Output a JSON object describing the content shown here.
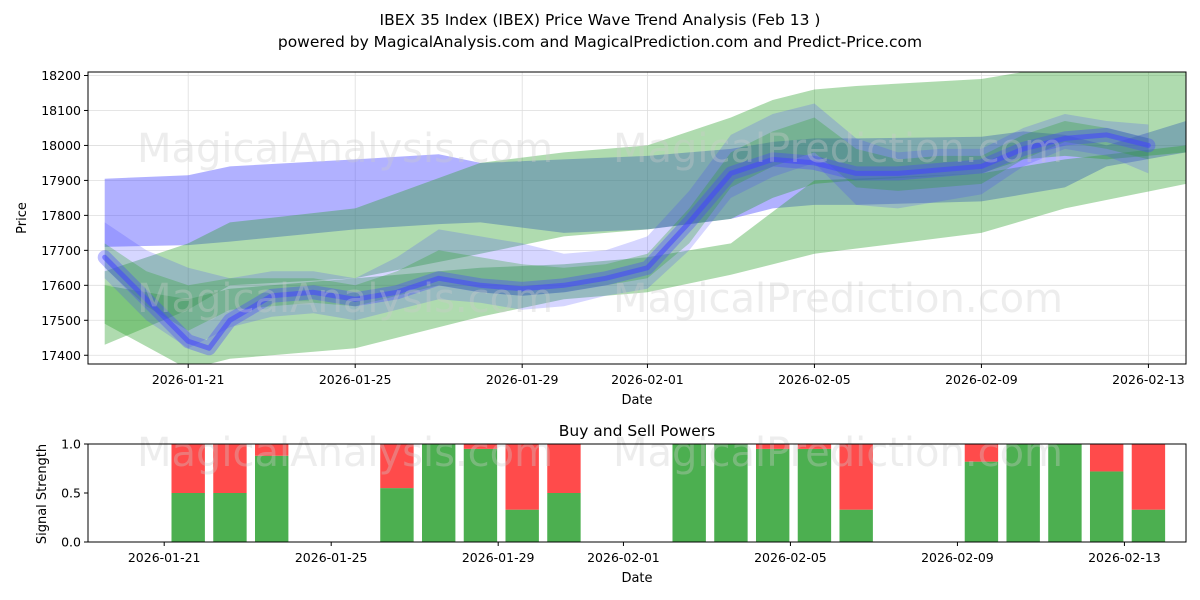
{
  "title_line1": "IBEX 35 Index (IBEX) Price Wave Trend Analysis (Feb 13 )",
  "title_line2": "powered by MagicalAnalysis.com and MagicalPrediction.com and Predict-Price.com",
  "watermarks": [
    "MagicalAnalysis.com",
    "MagicalPrediction.com"
  ],
  "colors": {
    "blue": "#4444ff",
    "green": "#2ca02c",
    "buy": "#4caf50",
    "sell": "#ff4b4b"
  },
  "chart_data": [
    {
      "type": "area",
      "title": "IBEX 35 Index (IBEX) Price Wave Trend Analysis (Feb 13 )",
      "xlabel": "Date",
      "ylabel": "Price",
      "x_start": "2026-01-18",
      "xlim_days": [
        0.6,
        26.9
      ],
      "ylim": [
        17375,
        18210
      ],
      "yticks": [
        17400,
        17500,
        17600,
        17700,
        17800,
        17900,
        18000,
        18100,
        18200
      ],
      "xticks": [
        {
          "day": 3,
          "label": "2026-01-21"
        },
        {
          "day": 7,
          "label": "2026-01-25"
        },
        {
          "day": 11,
          "label": "2026-01-29"
        },
        {
          "day": 14,
          "label": "2026-02-01"
        },
        {
          "day": 18,
          "label": "2026-02-05"
        },
        {
          "day": 22,
          "label": "2026-02-09"
        },
        {
          "day": 26,
          "label": "2026-02-13"
        }
      ],
      "bands": [
        {
          "name": "blue-wide-band",
          "color": "blue",
          "opacity": 0.42,
          "x": [
            1,
            3,
            4,
            7,
            9,
            10,
            12,
            14,
            16,
            17,
            18,
            19,
            22,
            23,
            24,
            25,
            26.9
          ],
          "upper": [
            17905,
            17915,
            17940,
            17960,
            17975,
            17950,
            17960,
            17970,
            17990,
            18010,
            18020,
            18020,
            18025,
            18040,
            18030,
            18000,
            18070
          ],
          "lower": [
            17710,
            17715,
            17725,
            17760,
            17775,
            17780,
            17750,
            17760,
            17790,
            17820,
            17830,
            17830,
            17840,
            17860,
            17880,
            17940,
            17980
          ]
        },
        {
          "name": "green-wide-band-upper",
          "color": "green",
          "opacity": 0.38,
          "x": [
            1,
            3,
            4,
            7,
            10,
            12,
            14,
            16,
            17,
            18,
            19,
            22,
            23,
            24,
            25,
            26.9
          ],
          "upper": [
            17640,
            17720,
            17780,
            17820,
            17950,
            17980,
            18000,
            18080,
            18130,
            18160,
            18170,
            18190,
            18210,
            18210,
            18210,
            18210
          ],
          "lower": [
            17430,
            17530,
            17600,
            17620,
            17690,
            17740,
            17760,
            17790,
            17850,
            17890,
            17900,
            17920,
            17960,
            17970,
            17960,
            17980
          ]
        },
        {
          "name": "green-wide-band-lower",
          "color": "green",
          "opacity": 0.38,
          "x": [
            1,
            3,
            4,
            7,
            10,
            12,
            14,
            16,
            18,
            20,
            22,
            24,
            26.9
          ],
          "upper": [
            17600,
            17560,
            17590,
            17620,
            17650,
            17660,
            17680,
            17720,
            17900,
            17910,
            17920,
            17960,
            18000
          ],
          "lower": [
            17490,
            17360,
            17390,
            17420,
            17510,
            17560,
            17580,
            17630,
            17690,
            17720,
            17750,
            17820,
            17890
          ]
        },
        {
          "name": "mid-blue-band",
          "color": "blue",
          "opacity": 0.22,
          "x": [
            1,
            2,
            3,
            4,
            5,
            6,
            7,
            8,
            9,
            10,
            11,
            12,
            13,
            14,
            15,
            16,
            17,
            18,
            19,
            20,
            21,
            22,
            23,
            24,
            25,
            26
          ],
          "upper": [
            17780,
            17700,
            17650,
            17620,
            17640,
            17640,
            17620,
            17680,
            17760,
            17740,
            17720,
            17690,
            17700,
            17740,
            17870,
            18030,
            18090,
            18120,
            18020,
            17980,
            17990,
            17990,
            18050,
            18090,
            18070,
            18060
          ],
          "lower": [
            17620,
            17500,
            17420,
            17480,
            17510,
            17520,
            17500,
            17530,
            17560,
            17550,
            17530,
            17540,
            17570,
            17590,
            17700,
            17850,
            17910,
            17950,
            17830,
            17820,
            17840,
            17860,
            17940,
            17990,
            17970,
            17920
          ]
        },
        {
          "name": "teal-core-band",
          "color": "green",
          "opacity": 0.3,
          "x": [
            1,
            2,
            3,
            4,
            5,
            6,
            7,
            8,
            9,
            10,
            11,
            12,
            13,
            14,
            15,
            16,
            17,
            18,
            19,
            20,
            21,
            22,
            23,
            24,
            25,
            26
          ],
          "upper": [
            17720,
            17640,
            17600,
            17620,
            17620,
            17620,
            17600,
            17640,
            17700,
            17680,
            17660,
            17650,
            17660,
            17690,
            17820,
            17980,
            18040,
            18080,
            17990,
            17960,
            17970,
            17970,
            18030,
            18070,
            18050,
            18020
          ],
          "lower": [
            17650,
            17540,
            17470,
            17530,
            17540,
            17550,
            17540,
            17570,
            17600,
            17580,
            17570,
            17580,
            17600,
            17620,
            17720,
            17880,
            17940,
            17980,
            17880,
            17870,
            17880,
            17890,
            17960,
            18010,
            17990,
            17960
          ]
        }
      ],
      "series": [
        {
          "name": "center-trend",
          "color": "blue",
          "x": [
            1,
            1.5,
            2,
            2.5,
            3,
            3.5,
            4,
            5,
            6,
            7,
            8,
            9,
            10,
            11,
            12,
            13,
            14,
            15,
            16,
            17,
            18,
            19,
            20,
            21,
            22,
            23,
            24,
            25,
            26
          ],
          "values": [
            17680,
            17620,
            17560,
            17500,
            17440,
            17420,
            17500,
            17570,
            17580,
            17560,
            17580,
            17620,
            17600,
            17590,
            17600,
            17620,
            17650,
            17780,
            17920,
            17960,
            17950,
            17920,
            17920,
            17930,
            17940,
            17990,
            18020,
            18030,
            18000
          ]
        }
      ]
    },
    {
      "type": "bar",
      "title": "Buy and Sell Powers",
      "xlabel": "Date",
      "ylabel": "Signal Strength",
      "ylim": [
        0,
        1
      ],
      "yticks": [
        0.0,
        0.5,
        1.0
      ],
      "xlim_days": [
        0.6,
        26.9
      ],
      "xticks": [
        {
          "day": 3,
          "label": "2026-01-21"
        },
        {
          "day": 7,
          "label": "2026-01-25"
        },
        {
          "day": 11,
          "label": "2026-01-29"
        },
        {
          "day": 14,
          "label": "2026-02-01"
        },
        {
          "day": 18,
          "label": "2026-02-05"
        },
        {
          "day": 22,
          "label": "2026-02-09"
        },
        {
          "day": 26,
          "label": "2026-02-13"
        }
      ],
      "days": [
        3,
        4,
        5,
        8,
        9,
        10,
        11,
        12,
        15,
        16,
        17,
        18,
        19,
        22,
        23,
        24,
        25,
        26
      ],
      "buy": [
        0.5,
        0.5,
        0.88,
        0.55,
        1.0,
        0.95,
        0.33,
        0.5,
        1.0,
        1.0,
        0.95,
        0.95,
        0.33,
        0.82,
        1.0,
        1.0,
        0.72,
        0.33
      ],
      "sell": [
        0.5,
        0.5,
        0.12,
        0.45,
        0.0,
        0.05,
        0.67,
        0.5,
        0.0,
        0.0,
        0.05,
        0.05,
        0.67,
        0.18,
        0.0,
        0.0,
        0.28,
        0.67
      ]
    }
  ]
}
